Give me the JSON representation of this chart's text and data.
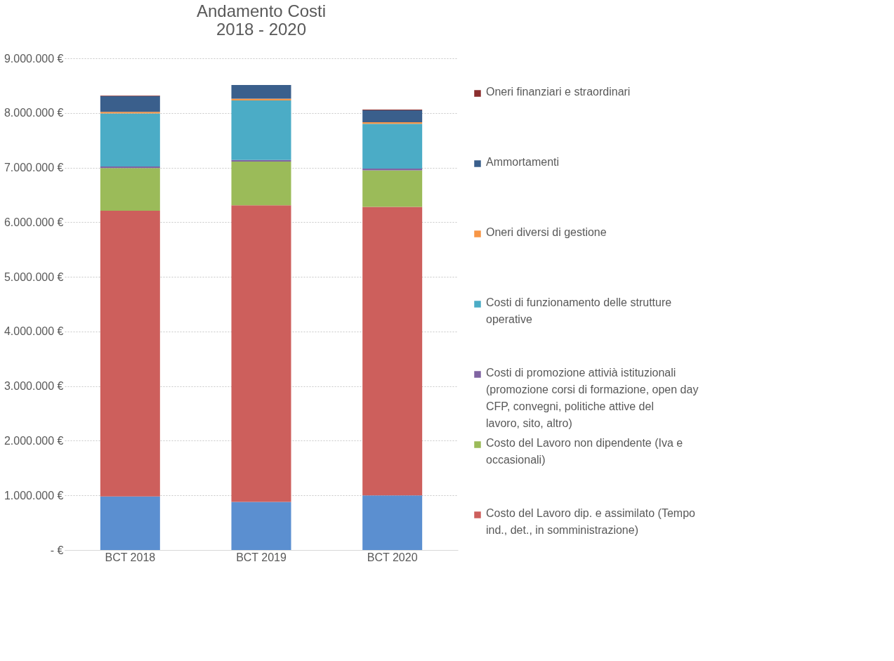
{
  "chart_data": {
    "type": "bar",
    "stacked": true,
    "title": "Andamento Costi 2018 - 2020",
    "categories": [
      "BCT 2018",
      "BCT 2019",
      "BCT 2020"
    ],
    "series": [
      {
        "color": "#5b8fd0",
        "values": [
          980000,
          880000,
          1000000
        ]
      },
      {
        "name": "Costo del Lavoro dip. e assimilato (Tempo ind., det., in somministrazione)",
        "color": "#cd5f5c",
        "values": [
          5230000,
          5430000,
          5280000
        ]
      },
      {
        "name": "Costo del Lavoro non dipendente (Iva e occasionali)",
        "color": "#9bbb59",
        "values": [
          780000,
          800000,
          670000
        ]
      },
      {
        "name": "Costi di promozione attivià istituzionali (promozione corsi di formazione, open day CFP, convegni, politiche attive del lavoro, sito, altro)",
        "color": "#8064a2",
        "values": [
          30000,
          30000,
          30000
        ]
      },
      {
        "name": "Costi di funzionamento delle strutture operative",
        "color": "#4bacc6",
        "values": [
          970000,
          1090000,
          820000
        ]
      },
      {
        "name": "Oneri diversi di gestione",
        "color": "#f79646",
        "values": [
          30000,
          30000,
          30000
        ]
      },
      {
        "name": "Ammortamenti",
        "color": "#3a5f8c",
        "values": [
          290000,
          250000,
          220000
        ]
      },
      {
        "name": "Oneri finanziari e straordinari",
        "color": "#8b2e2e",
        "values": [
          10000,
          0,
          10000
        ]
      }
    ],
    "ylim": [
      0,
      9000000
    ],
    "yticks": [
      {
        "value": 0,
        "label": "-  €"
      },
      {
        "value": 1000000,
        "label": "1.000.000 €"
      },
      {
        "value": 2000000,
        "label": "2.000.000 €"
      },
      {
        "value": 3000000,
        "label": "3.000.000 €"
      },
      {
        "value": 4000000,
        "label": "4.000.000 €"
      },
      {
        "value": 5000000,
        "label": "5.000.000 €"
      },
      {
        "value": 6000000,
        "label": "6.000.000 €"
      },
      {
        "value": 7000000,
        "label": "7.000.000 €"
      },
      {
        "value": 8000000,
        "label": "8.000.000 €"
      },
      {
        "value": 9000000,
        "label": "9.000.000 €"
      }
    ],
    "grid": "y",
    "legend": "right"
  }
}
